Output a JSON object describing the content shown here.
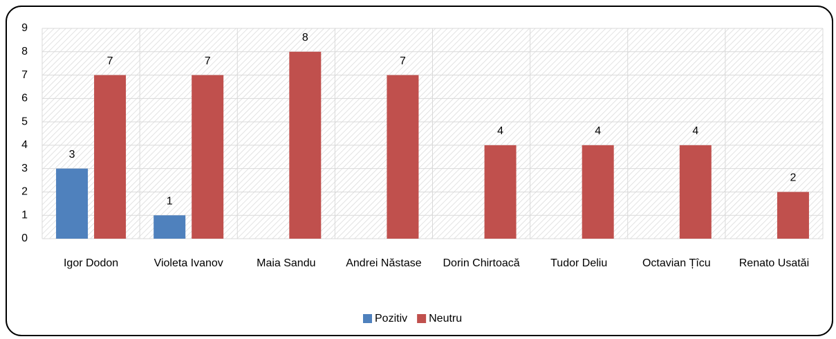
{
  "chart_data": {
    "type": "bar",
    "categories": [
      "Igor Dodon",
      "Violeta Ivanov",
      "Maia Sandu",
      "Andrei Năstase",
      "Dorin Chirtoacă",
      "Tudor Deliu",
      "Octavian Țîcu",
      "Renato Usatăi"
    ],
    "series": [
      {
        "name": "Pozitiv",
        "color": "#4f81bd",
        "values": [
          3,
          1,
          null,
          null,
          null,
          null,
          null,
          null
        ]
      },
      {
        "name": "Neutru",
        "color": "#c0504d",
        "values": [
          7,
          7,
          8,
          7,
          4,
          4,
          4,
          2
        ]
      }
    ],
    "ylim": [
      0,
      9
    ],
    "yticks": [
      0,
      1,
      2,
      3,
      4,
      5,
      6,
      7,
      8,
      9
    ],
    "grid": true,
    "legend": "bottom"
  }
}
